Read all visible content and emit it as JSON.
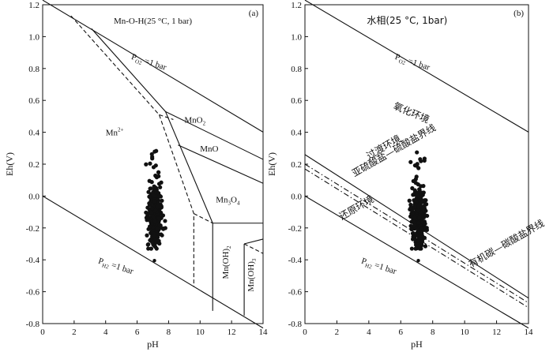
{
  "chart_data": [
    {
      "type": "scatter",
      "panel_tag": "(a)",
      "title": "Mn-O-H(25 °C, 1 bar)",
      "xlabel": "pH",
      "ylabel": "Eh(V)",
      "xlim": [
        0,
        14
      ],
      "ylim": [
        -0.8,
        1.2
      ],
      "xticks": [
        0,
        2,
        4,
        6,
        8,
        10,
        12,
        14
      ],
      "yticks": [
        -0.8,
        -0.6,
        -0.4,
        -0.2,
        0.0,
        0.2,
        0.4,
        0.6,
        0.8,
        1.0,
        1.2
      ],
      "ytick_labels": [
        "-0.8",
        "-0.6",
        "-0.4",
        "-0.2",
        "0.0",
        "0.2",
        "0.4",
        "0.6",
        "0.8",
        "1.0",
        "1.2"
      ],
      "water_limits": [
        {
          "label_main": "P",
          "label_sub": "O2",
          "label_rest": " =1 bar",
          "x": [
            0,
            14
          ],
          "y": [
            1.229,
            0.401
          ]
        },
        {
          "label_main": "P",
          "label_sub": "H2",
          "label_rest": " =1 bar",
          "x": [
            0,
            14
          ],
          "y": [
            0.0,
            -0.828
          ]
        }
      ],
      "boundaries_solid": [
        {
          "x": [
            3.1,
            7.8,
            10.8,
            10.8
          ],
          "y": [
            1.05,
            0.53,
            -0.17,
            -0.72
          ]
        },
        {
          "x": [
            7.8,
            14
          ],
          "y": [
            0.53,
            0.23
          ]
        },
        {
          "x": [
            8.6,
            14
          ],
          "y": [
            0.32,
            0.08
          ]
        },
        {
          "x": [
            10.8,
            14
          ],
          "y": [
            -0.17,
            -0.17
          ]
        },
        {
          "x": [
            12.8,
            12.8
          ],
          "y": [
            -0.3,
            -0.75
          ]
        },
        {
          "x": [
            12.8,
            14
          ],
          "y": [
            -0.3,
            -0.27
          ]
        }
      ],
      "boundaries_dashed": [
        {
          "x": [
            1.8,
            7.4,
            9.6,
            9.6
          ],
          "y": [
            1.13,
            0.51,
            -0.11,
            -0.57
          ]
        },
        {
          "x": [
            7.4,
            8.3
          ],
          "y": [
            0.51,
            0.48
          ]
        },
        {
          "x": [
            9.6,
            10.8
          ],
          "y": [
            -0.11,
            -0.17
          ]
        },
        {
          "x": [
            12.8,
            14
          ],
          "y": [
            -0.3,
            -0.36
          ]
        }
      ],
      "region_labels": [
        {
          "text": "Mn",
          "sup": "2+",
          "x": 4.0,
          "y": 0.38
        },
        {
          "text": "MnO",
          "sub": "2",
          "x": 9.0,
          "y": 0.46
        },
        {
          "text": "MnO",
          "x": 10.0,
          "y": 0.28
        },
        {
          "text": "Mn",
          "sub": "3",
          "rest": "O",
          "sub2": "4",
          "x": 11.0,
          "y": -0.04
        },
        {
          "text": "Mn(OH)",
          "sub": "2",
          "x": 11.8,
          "y": -0.52,
          "rotate": -90
        },
        {
          "text": "Mn(OH)",
          "sub": "3",
          "x": 13.4,
          "y": -0.6,
          "rotate": -90
        }
      ],
      "samples_note": "Measured groundwater samples clustered near pH 6.5–7.8, Eh -0.32 to 0.32 V"
    },
    {
      "type": "scatter",
      "panel_tag": "(b)",
      "title": "水相(25 °C, 1bar)",
      "xlabel": "pH",
      "ylabel": "Eh(V)",
      "xlim": [
        0,
        14
      ],
      "ylim": [
        -0.8,
        1.2
      ],
      "xticks": [
        0,
        2,
        4,
        6,
        8,
        10,
        12,
        14
      ],
      "yticks": [
        -0.8,
        -0.6,
        -0.4,
        -0.2,
        0.0,
        0.2,
        0.4,
        0.6,
        0.8,
        1.0,
        1.2
      ],
      "ytick_labels": [
        "-0.8",
        "-0.6",
        "-0.4",
        "-0.2",
        "0.0",
        "0.2",
        "0.4",
        "0.6",
        "0.8",
        "1.0",
        "1.2"
      ],
      "water_limits": [
        {
          "label_main": "P",
          "label_sub": "O2",
          "label_rest": " =1 bar",
          "x": [
            0,
            14
          ],
          "y": [
            1.229,
            0.401
          ]
        },
        {
          "label_main": "P",
          "label_sub": "H2",
          "label_rest": " =1 bar",
          "x": [
            0,
            14
          ],
          "y": [
            0.0,
            -0.828
          ]
        }
      ],
      "boundary_solid": {
        "x": [
          0,
          14
        ],
        "y": [
          0.26,
          -0.64
        ]
      },
      "boundary_dashdot_1": {
        "x": [
          0,
          14
        ],
        "y": [
          0.2,
          -0.67
        ]
      },
      "boundary_dashdot_2": {
        "x": [
          0,
          14
        ],
        "y": [
          0.17,
          -0.7
        ]
      },
      "region_labels": [
        {
          "text": "氧化环境",
          "x": 5.5,
          "y": 0.55,
          "rotate": 23
        },
        {
          "text": "过渡环境",
          "x": 4.0,
          "y": 0.23,
          "rotate": -30
        },
        {
          "text": "亚硫酸盐—硫酸盐界线",
          "x": 3.1,
          "y": 0.12,
          "rotate": -30
        },
        {
          "text": "还原环境",
          "x": 2.3,
          "y": -0.15,
          "rotate": -30
        },
        {
          "text": "有机碳—碳酸盐界线",
          "x": 10.4,
          "y": -0.45,
          "rotate": -30
        }
      ]
    }
  ]
}
